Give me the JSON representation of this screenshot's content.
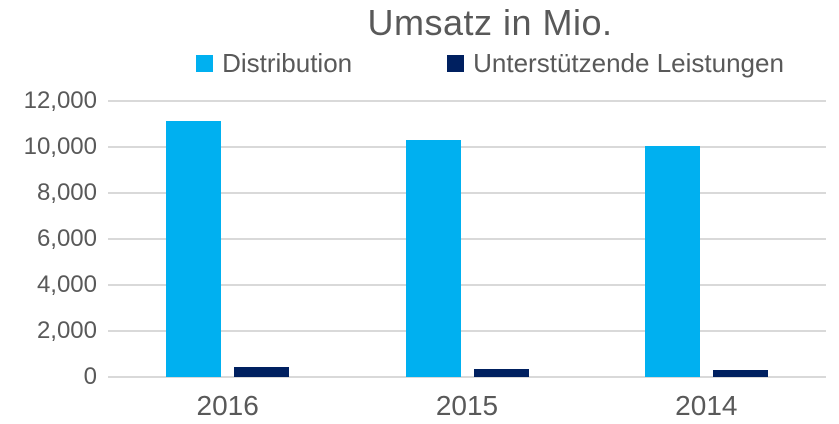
{
  "title": "Umsatz in Mio.",
  "colors": {
    "distribution": "#00B0F0",
    "unterstuetzende_leistungen": "#002060",
    "text": "#595959",
    "gridline": "#D9D9D9",
    "background": "#FFFFFF"
  },
  "legend": [
    {
      "label": "Distribution",
      "color": "#00B0F0"
    },
    {
      "label": "Unterstützende Leistungen",
      "color": "#002060"
    }
  ],
  "chart_data": {
    "type": "bar",
    "title": "Umsatz in Mio.",
    "categories": [
      "2016",
      "2015",
      "2014"
    ],
    "series": [
      {
        "name": "Distribution",
        "color": "#00B0F0",
        "values": [
          11150,
          10300,
          10050
        ]
      },
      {
        "name": "Unterstützende Leistungen",
        "color": "#002060",
        "values": [
          430,
          350,
          320
        ]
      }
    ],
    "xlabel": "",
    "ylabel": "",
    "ylim": [
      0,
      12000
    ],
    "ytick_step": 2000,
    "ytick_values": [
      0,
      2000,
      4000,
      6000,
      8000,
      10000,
      12000
    ],
    "ytick_labels": [
      "0",
      "2,000",
      "4,000",
      "6,000",
      "8,000",
      "10,000",
      "12,000"
    ],
    "grid": true,
    "legend_position": "top"
  }
}
